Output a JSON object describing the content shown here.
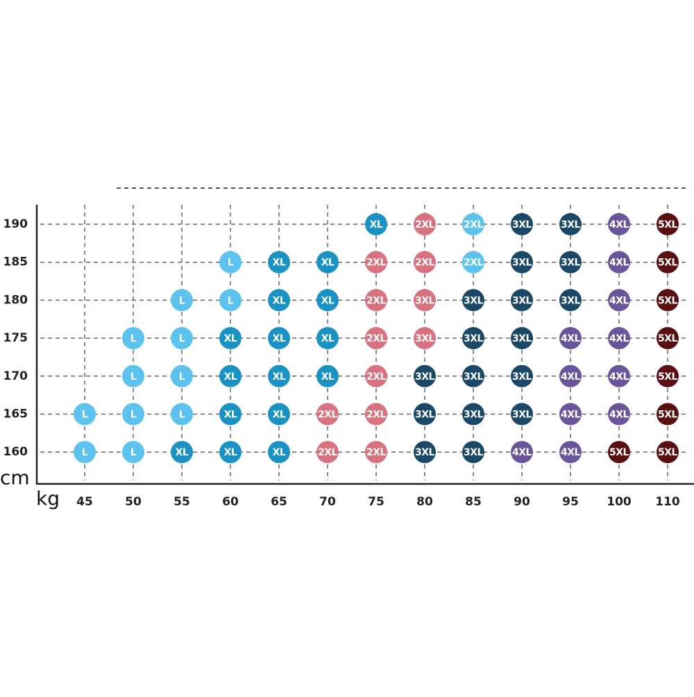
{
  "axis": {
    "y_unit": "cm",
    "x_unit": "kg"
  },
  "columns": [
    "45",
    "50",
    "55",
    "60",
    "65",
    "70",
    "75",
    "80",
    "85",
    "90",
    "95",
    "100",
    "110"
  ],
  "rows": [
    "190",
    "185",
    "180",
    "175",
    "170",
    "165",
    "160"
  ],
  "cells": [
    [
      null,
      null,
      null,
      null,
      null,
      null,
      {
        "label": "XL",
        "color": "#1a93c4"
      },
      {
        "label": "2XL",
        "color": "#d9727f"
      },
      {
        "label": "2XL",
        "color": "#5bc3ee"
      },
      {
        "label": "3XL",
        "color": "#1a4866"
      },
      {
        "label": "3XL",
        "color": "#1a4866"
      },
      {
        "label": "4XL",
        "color": "#6a549a"
      },
      {
        "label": "5XL",
        "color": "#5a1010"
      }
    ],
    [
      null,
      null,
      null,
      {
        "label": "L",
        "color": "#5bc3ee"
      },
      {
        "label": "XL",
        "color": "#1a93c4"
      },
      {
        "label": "XL",
        "color": "#1a93c4"
      },
      {
        "label": "2XL",
        "color": "#d9727f"
      },
      {
        "label": "2XL",
        "color": "#d9727f"
      },
      {
        "label": "2XL",
        "color": "#5bc3ee"
      },
      {
        "label": "3XL",
        "color": "#1a4866"
      },
      {
        "label": "3XL",
        "color": "#1a4866"
      },
      {
        "label": "4XL",
        "color": "#6a549a"
      },
      {
        "label": "5XL",
        "color": "#5a1010"
      }
    ],
    [
      null,
      null,
      {
        "label": "L",
        "color": "#5bc3ee"
      },
      {
        "label": "L",
        "color": "#5bc3ee"
      },
      {
        "label": "XL",
        "color": "#1a93c4"
      },
      {
        "label": "XL",
        "color": "#1a93c4"
      },
      {
        "label": "2XL",
        "color": "#d9727f"
      },
      {
        "label": "3XL",
        "color": "#d9727f"
      },
      {
        "label": "3XL",
        "color": "#1a4866"
      },
      {
        "label": "3XL",
        "color": "#1a4866"
      },
      {
        "label": "3XL",
        "color": "#1a4866"
      },
      {
        "label": "4XL",
        "color": "#6a549a"
      },
      {
        "label": "5XL",
        "color": "#5a1010"
      }
    ],
    [
      null,
      {
        "label": "L",
        "color": "#5bc3ee"
      },
      {
        "label": "L",
        "color": "#5bc3ee"
      },
      {
        "label": "XL",
        "color": "#1a93c4"
      },
      {
        "label": "XL",
        "color": "#1a93c4"
      },
      {
        "label": "XL",
        "color": "#1a93c4"
      },
      {
        "label": "2XL",
        "color": "#d9727f"
      },
      {
        "label": "3XL",
        "color": "#d9727f"
      },
      {
        "label": "3XL",
        "color": "#1a4866"
      },
      {
        "label": "3XL",
        "color": "#1a4866"
      },
      {
        "label": "4XL",
        "color": "#6a549a"
      },
      {
        "label": "4XL",
        "color": "#6a549a"
      },
      {
        "label": "5XL",
        "color": "#5a1010"
      }
    ],
    [
      null,
      {
        "label": "L",
        "color": "#5bc3ee"
      },
      {
        "label": "L",
        "color": "#5bc3ee"
      },
      {
        "label": "XL",
        "color": "#1a93c4"
      },
      {
        "label": "XL",
        "color": "#1a93c4"
      },
      {
        "label": "XL",
        "color": "#1a93c4"
      },
      {
        "label": "2XL",
        "color": "#d9727f"
      },
      {
        "label": "3XL",
        "color": "#1a4866"
      },
      {
        "label": "3XL",
        "color": "#1a4866"
      },
      {
        "label": "3XL",
        "color": "#1a4866"
      },
      {
        "label": "4XL",
        "color": "#6a549a"
      },
      {
        "label": "4XL",
        "color": "#6a549a"
      },
      {
        "label": "5XL",
        "color": "#5a1010"
      }
    ],
    [
      {
        "label": "L",
        "color": "#5bc3ee"
      },
      {
        "label": "L",
        "color": "#5bc3ee"
      },
      {
        "label": "L",
        "color": "#5bc3ee"
      },
      {
        "label": "XL",
        "color": "#1a93c4"
      },
      {
        "label": "XL",
        "color": "#1a93c4"
      },
      {
        "label": "2XL",
        "color": "#d9727f"
      },
      {
        "label": "2XL",
        "color": "#d9727f"
      },
      {
        "label": "3XL",
        "color": "#1a4866"
      },
      {
        "label": "3XL",
        "color": "#1a4866"
      },
      {
        "label": "3XL",
        "color": "#1a4866"
      },
      {
        "label": "4XL",
        "color": "#6a549a"
      },
      {
        "label": "4XL",
        "color": "#6a549a"
      },
      {
        "label": "5XL",
        "color": "#5a1010"
      }
    ],
    [
      {
        "label": "L",
        "color": "#5bc3ee"
      },
      {
        "label": "L",
        "color": "#5bc3ee"
      },
      {
        "label": "XL",
        "color": "#1a93c4"
      },
      {
        "label": "XL",
        "color": "#1a93c4"
      },
      {
        "label": "XL",
        "color": "#1a93c4"
      },
      {
        "label": "2XL",
        "color": "#d9727f"
      },
      {
        "label": "2XL",
        "color": "#d9727f"
      },
      {
        "label": "3XL",
        "color": "#1a4866"
      },
      {
        "label": "3XL",
        "color": "#1a4866"
      },
      {
        "label": "4XL",
        "color": "#6a549a"
      },
      {
        "label": "4XL",
        "color": "#6a549a"
      },
      {
        "label": "5XL",
        "color": "#5a1010"
      },
      {
        "label": "5XL",
        "color": "#5a1010"
      }
    ]
  ]
}
